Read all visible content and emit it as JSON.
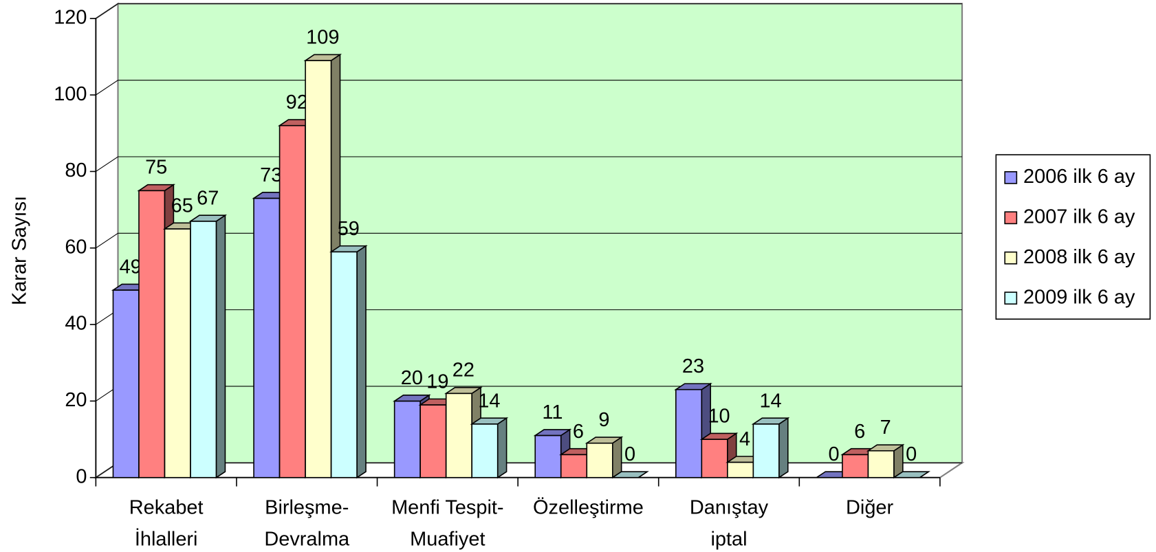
{
  "chart_data": {
    "type": "bar3d",
    "y_label": "Karar Sayısı",
    "categories": [
      [
        "Rekabet",
        "İhlalleri"
      ],
      [
        "Birleşme-",
        "Devralma"
      ],
      [
        "Menfi Tespit-",
        "Muafiyet"
      ],
      [
        "Özelleştirme"
      ],
      [
        "Danıştay",
        "iptal"
      ],
      [
        "Diğer"
      ]
    ],
    "series": [
      {
        "name": "2006 ilk 6 ay",
        "color": "#9999ff",
        "values": [
          49,
          73,
          20,
          11,
          23,
          0
        ]
      },
      {
        "name": "2007 ilk 6 ay",
        "color": "#ff8080",
        "values": [
          75,
          92,
          19,
          6,
          10,
          6
        ]
      },
      {
        "name": "2008 ilk 6 ay",
        "color": "#ffffcc",
        "values": [
          65,
          109,
          22,
          9,
          4,
          7
        ]
      },
      {
        "name": "2009 ilk 6 ay",
        "color": "#ccffff",
        "values": [
          67,
          59,
          14,
          0,
          14,
          0
        ]
      }
    ],
    "ylim": [
      0,
      120
    ],
    "yticks": [
      0,
      20,
      40,
      60,
      80,
      100,
      120
    ],
    "grid": true,
    "legend": "right",
    "wall_color": "#ccffcc"
  }
}
